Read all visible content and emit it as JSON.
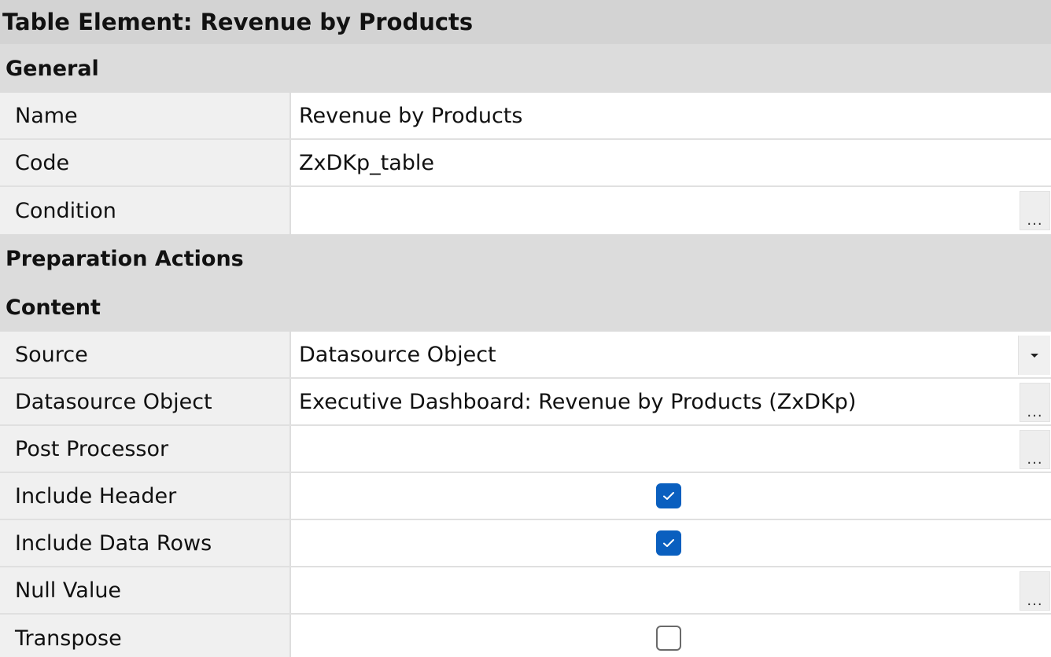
{
  "title": "Table Element: Revenue by Products",
  "sections": {
    "general": {
      "label": "General",
      "name": {
        "label": "Name",
        "value": "Revenue by Products"
      },
      "code": {
        "label": "Code",
        "value": "ZxDKp_table"
      },
      "condition": {
        "label": "Condition",
        "value": ""
      }
    },
    "preparation_actions": {
      "label": "Preparation Actions"
    },
    "content": {
      "label": "Content",
      "source": {
        "label": "Source",
        "value": "Datasource Object"
      },
      "datasource_object": {
        "label": "Datasource Object",
        "value": "Executive Dashboard: Revenue by Products (ZxDKp)"
      },
      "post_processor": {
        "label": "Post Processor",
        "value": ""
      },
      "include_header": {
        "label": "Include Header",
        "checked": true
      },
      "include_data_rows": {
        "label": "Include Data Rows",
        "checked": true
      },
      "null_value": {
        "label": "Null Value",
        "value": ""
      },
      "transpose": {
        "label": "Transpose",
        "checked": false
      }
    }
  },
  "ellipsis_glyph": "...",
  "colors": {
    "checkbox_checked": "#0a5fbf",
    "section_header_bg": "#dcdcdc",
    "title_bg": "#d3d3d3",
    "label_bg": "#f0f0f0"
  }
}
